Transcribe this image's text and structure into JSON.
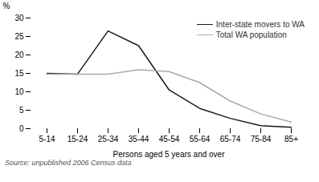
{
  "chart_data": {
    "type": "line",
    "categories": [
      "5-14",
      "15-24",
      "25-34",
      "35-44",
      "45-54",
      "55-64",
      "65-74",
      "75-84",
      "85+"
    ],
    "series": [
      {
        "name": "Inter-state movers to WA",
        "color": "#1a1a1a",
        "values": [
          15.0,
          14.8,
          26.5,
          22.5,
          10.5,
          5.5,
          2.8,
          0.8,
          0.4
        ]
      },
      {
        "name": "Total WA population",
        "color": "#aaaaaa",
        "values": [
          14.8,
          14.8,
          14.8,
          16.0,
          15.5,
          12.5,
          7.5,
          4.0,
          1.8
        ]
      }
    ],
    "xlabel": "Persons aged 5 years and over",
    "ylabel": "%",
    "ylim": [
      0,
      30
    ],
    "yticks": [
      0,
      5,
      10,
      15,
      20,
      25,
      30
    ],
    "grid": false,
    "legend": "upper right",
    "caption": "Source: unpublished 2006 Census data"
  }
}
